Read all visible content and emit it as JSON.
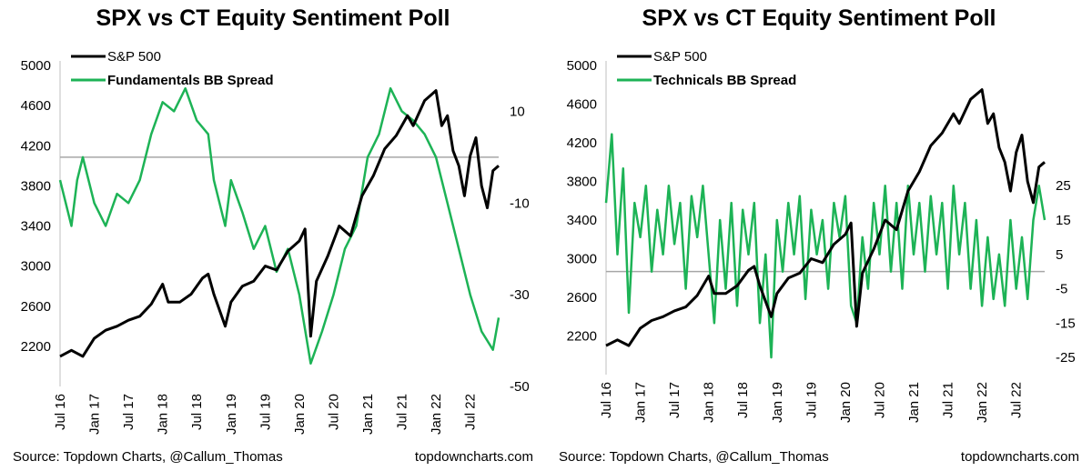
{
  "colors": {
    "spx": "#000000",
    "sentiment": "#1db356",
    "zero_line": "#a6a6a6",
    "axis": "#bfbfbf"
  },
  "chart_data": [
    {
      "type": "line",
      "title": "SPX vs CT Equity Sentiment Poll",
      "source": "Source: Topdown Charts, @Callum_Thomas",
      "site": "topdowncharts.com",
      "x_ticks": [
        "Jul 16",
        "Jan 17",
        "Jul 17",
        "Jan 18",
        "Jul 18",
        "Jan 19",
        "Jul 19",
        "Jan 20",
        "Jul 20",
        "Jan 21",
        "Jul 21",
        "Jan 22",
        "Jul 22"
      ],
      "xlim": [
        "2016-07",
        "2022-12"
      ],
      "y_left": {
        "ylim": [
          1800,
          5000
        ],
        "ticks": [
          "2200",
          "2600",
          "3000",
          "3400",
          "3800",
          "4200",
          "4600",
          "5000"
        ]
      },
      "y_right": {
        "ylim": [
          -50,
          20
        ],
        "ticks": [
          "10",
          "-10",
          "-30",
          "-50"
        ]
      },
      "zero_line": 0,
      "series": [
        {
          "name": "S&P 500",
          "axis": "left",
          "legend_bold": false,
          "points": [
            [
              "2016-07",
              2100
            ],
            [
              "2016-09",
              2160
            ],
            [
              "2016-11",
              2100
            ],
            [
              "2017-01",
              2280
            ],
            [
              "2017-03",
              2360
            ],
            [
              "2017-05",
              2400
            ],
            [
              "2017-07",
              2460
            ],
            [
              "2017-09",
              2500
            ],
            [
              "2017-11",
              2620
            ],
            [
              "2018-01",
              2820
            ],
            [
              "2018-02",
              2640
            ],
            [
              "2018-04",
              2640
            ],
            [
              "2018-06",
              2720
            ],
            [
              "2018-08",
              2880
            ],
            [
              "2018-09",
              2920
            ],
            [
              "2018-10",
              2720
            ],
            [
              "2018-12",
              2400
            ],
            [
              "2019-01",
              2640
            ],
            [
              "2019-03",
              2800
            ],
            [
              "2019-05",
              2850
            ],
            [
              "2019-07",
              3000
            ],
            [
              "2019-09",
              2960
            ],
            [
              "2019-11",
              3150
            ],
            [
              "2020-01",
              3250
            ],
            [
              "2020-02",
              3370
            ],
            [
              "2020-03",
              2300
            ],
            [
              "2020-04",
              2850
            ],
            [
              "2020-06",
              3100
            ],
            [
              "2020-08",
              3400
            ],
            [
              "2020-10",
              3300
            ],
            [
              "2020-12",
              3700
            ],
            [
              "2021-02",
              3900
            ],
            [
              "2021-04",
              4170
            ],
            [
              "2021-06",
              4300
            ],
            [
              "2021-08",
              4500
            ],
            [
              "2021-09",
              4400
            ],
            [
              "2021-11",
              4650
            ],
            [
              "2021-12",
              4700
            ],
            [
              "2022-01",
              4750
            ],
            [
              "2022-02",
              4400
            ],
            [
              "2022-03",
              4500
            ],
            [
              "2022-04",
              4150
            ],
            [
              "2022-05",
              4000
            ],
            [
              "2022-06",
              3700
            ],
            [
              "2022-07",
              4100
            ],
            [
              "2022-08",
              4280
            ],
            [
              "2022-09",
              3800
            ],
            [
              "2022-10",
              3580
            ],
            [
              "2022-11",
              3950
            ],
            [
              "2022-12",
              4000
            ]
          ]
        },
        {
          "name": "Fundamentals BB Spread",
          "axis": "right",
          "legend_bold": true,
          "points": [
            [
              "2016-07",
              -5
            ],
            [
              "2016-09",
              -15
            ],
            [
              "2016-10",
              -5
            ],
            [
              "2016-11",
              0
            ],
            [
              "2017-01",
              -10
            ],
            [
              "2017-03",
              -15
            ],
            [
              "2017-05",
              -8
            ],
            [
              "2017-07",
              -10
            ],
            [
              "2017-09",
              -5
            ],
            [
              "2017-11",
              5
            ],
            [
              "2018-01",
              12
            ],
            [
              "2018-03",
              10
            ],
            [
              "2018-05",
              15
            ],
            [
              "2018-07",
              8
            ],
            [
              "2018-09",
              5
            ],
            [
              "2018-10",
              -5
            ],
            [
              "2018-12",
              -15
            ],
            [
              "2019-01",
              -5
            ],
            [
              "2019-03",
              -12
            ],
            [
              "2019-05",
              -20
            ],
            [
              "2019-07",
              -15
            ],
            [
              "2019-09",
              -25
            ],
            [
              "2019-11",
              -20
            ],
            [
              "2020-01",
              -30
            ],
            [
              "2020-03",
              -45
            ],
            [
              "2020-05",
              -38
            ],
            [
              "2020-07",
              -30
            ],
            [
              "2020-09",
              -20
            ],
            [
              "2020-11",
              -15
            ],
            [
              "2021-01",
              0
            ],
            [
              "2021-03",
              5
            ],
            [
              "2021-05",
              15
            ],
            [
              "2021-07",
              10
            ],
            [
              "2021-09",
              8
            ],
            [
              "2021-11",
              5
            ],
            [
              "2022-01",
              0
            ],
            [
              "2022-03",
              -10
            ],
            [
              "2022-05",
              -20
            ],
            [
              "2022-07",
              -30
            ],
            [
              "2022-09",
              -38
            ],
            [
              "2022-11",
              -42
            ],
            [
              "2022-12",
              -35
            ]
          ]
        }
      ]
    },
    {
      "type": "line",
      "title": "SPX vs CT Equity Sentiment Poll",
      "source": "Source: Topdown Charts, @Callum_Thomas",
      "site": "topdowncharts.com",
      "x_ticks": [
        "Jul 16",
        "Jan 17",
        "Jul 17",
        "Jan 18",
        "Jul 18",
        "Jan 19",
        "Jul 19",
        "Jan 20",
        "Jul 20",
        "Jan 21",
        "Jul 21",
        "Jan 22",
        "Jul 22"
      ],
      "xlim": [
        "2016-07",
        "2022-12"
      ],
      "y_left": {
        "ylim": [
          1800,
          5000
        ],
        "ticks": [
          "2200",
          "2600",
          "3000",
          "3400",
          "3800",
          "4200",
          "4600",
          "5000"
        ]
      },
      "y_right": {
        "ylim": [
          -30,
          60
        ],
        "ticks": [
          "25",
          "15",
          "5",
          "-5",
          "-15",
          "-25"
        ]
      },
      "zero_line": 0,
      "series": [
        {
          "name": "S&P 500",
          "axis": "left",
          "legend_bold": false,
          "points": [
            [
              "2016-07",
              2100
            ],
            [
              "2016-09",
              2160
            ],
            [
              "2016-11",
              2100
            ],
            [
              "2017-01",
              2280
            ],
            [
              "2017-03",
              2360
            ],
            [
              "2017-05",
              2400
            ],
            [
              "2017-07",
              2460
            ],
            [
              "2017-09",
              2500
            ],
            [
              "2017-11",
              2620
            ],
            [
              "2018-01",
              2820
            ],
            [
              "2018-02",
              2640
            ],
            [
              "2018-04",
              2640
            ],
            [
              "2018-06",
              2720
            ],
            [
              "2018-08",
              2880
            ],
            [
              "2018-09",
              2920
            ],
            [
              "2018-10",
              2720
            ],
            [
              "2018-12",
              2400
            ],
            [
              "2019-01",
              2640
            ],
            [
              "2019-03",
              2800
            ],
            [
              "2019-05",
              2850
            ],
            [
              "2019-07",
              3000
            ],
            [
              "2019-09",
              2960
            ],
            [
              "2019-11",
              3150
            ],
            [
              "2020-01",
              3250
            ],
            [
              "2020-02",
              3370
            ],
            [
              "2020-03",
              2300
            ],
            [
              "2020-04",
              2850
            ],
            [
              "2020-06",
              3100
            ],
            [
              "2020-08",
              3400
            ],
            [
              "2020-10",
              3300
            ],
            [
              "2020-12",
              3700
            ],
            [
              "2021-02",
              3900
            ],
            [
              "2021-04",
              4170
            ],
            [
              "2021-06",
              4300
            ],
            [
              "2021-08",
              4500
            ],
            [
              "2021-09",
              4400
            ],
            [
              "2021-11",
              4650
            ],
            [
              "2021-12",
              4700
            ],
            [
              "2022-01",
              4750
            ],
            [
              "2022-02",
              4400
            ],
            [
              "2022-03",
              4500
            ],
            [
              "2022-04",
              4150
            ],
            [
              "2022-05",
              4000
            ],
            [
              "2022-06",
              3700
            ],
            [
              "2022-07",
              4100
            ],
            [
              "2022-08",
              4280
            ],
            [
              "2022-09",
              3800
            ],
            [
              "2022-10",
              3580
            ],
            [
              "2022-11",
              3950
            ],
            [
              "2022-12",
              4000
            ]
          ]
        },
        {
          "name": "Technicals BB Spread",
          "axis": "right",
          "legend_bold": true,
          "points": [
            [
              "2016-07",
              20
            ],
            [
              "2016-08",
              40
            ],
            [
              "2016-09",
              5
            ],
            [
              "2016-10",
              30
            ],
            [
              "2016-11",
              -12
            ],
            [
              "2016-12",
              20
            ],
            [
              "2017-01",
              10
            ],
            [
              "2017-02",
              25
            ],
            [
              "2017-03",
              0
            ],
            [
              "2017-04",
              18
            ],
            [
              "2017-05",
              5
            ],
            [
              "2017-06",
              25
            ],
            [
              "2017-07",
              8
            ],
            [
              "2017-08",
              20
            ],
            [
              "2017-09",
              -5
            ],
            [
              "2017-10",
              22
            ],
            [
              "2017-11",
              10
            ],
            [
              "2017-12",
              25
            ],
            [
              "2018-01",
              5
            ],
            [
              "2018-02",
              -15
            ],
            [
              "2018-03",
              15
            ],
            [
              "2018-04",
              -5
            ],
            [
              "2018-05",
              20
            ],
            [
              "2018-06",
              -10
            ],
            [
              "2018-07",
              18
            ],
            [
              "2018-08",
              5
            ],
            [
              "2018-09",
              20
            ],
            [
              "2018-10",
              -15
            ],
            [
              "2018-11",
              5
            ],
            [
              "2018-12",
              -25
            ],
            [
              "2019-01",
              15
            ],
            [
              "2019-02",
              0
            ],
            [
              "2019-03",
              20
            ],
            [
              "2019-04",
              5
            ],
            [
              "2019-05",
              22
            ],
            [
              "2019-06",
              -8
            ],
            [
              "2019-07",
              18
            ],
            [
              "2019-08",
              5
            ],
            [
              "2019-09",
              15
            ],
            [
              "2019-10",
              -5
            ],
            [
              "2019-11",
              20
            ],
            [
              "2019-12",
              10
            ],
            [
              "2020-01",
              22
            ],
            [
              "2020-02",
              -10
            ],
            [
              "2020-03",
              -15
            ],
            [
              "2020-04",
              10
            ],
            [
              "2020-05",
              -5
            ],
            [
              "2020-06",
              20
            ],
            [
              "2020-07",
              5
            ],
            [
              "2020-08",
              25
            ],
            [
              "2020-09",
              0
            ],
            [
              "2020-10",
              20
            ],
            [
              "2020-11",
              -5
            ],
            [
              "2020-12",
              25
            ],
            [
              "2021-01",
              5
            ],
            [
              "2021-02",
              20
            ],
            [
              "2021-03",
              0
            ],
            [
              "2021-04",
              22
            ],
            [
              "2021-05",
              5
            ],
            [
              "2021-06",
              20
            ],
            [
              "2021-07",
              -5
            ],
            [
              "2021-08",
              25
            ],
            [
              "2021-09",
              5
            ],
            [
              "2021-10",
              20
            ],
            [
              "2021-11",
              -5
            ],
            [
              "2021-12",
              15
            ],
            [
              "2022-01",
              -10
            ],
            [
              "2022-02",
              10
            ],
            [
              "2022-03",
              -8
            ],
            [
              "2022-04",
              5
            ],
            [
              "2022-05",
              -10
            ],
            [
              "2022-06",
              15
            ],
            [
              "2022-07",
              -5
            ],
            [
              "2022-08",
              10
            ],
            [
              "2022-09",
              -8
            ],
            [
              "2022-10",
              15
            ],
            [
              "2022-11",
              25
            ],
            [
              "2022-12",
              15
            ]
          ]
        }
      ]
    }
  ]
}
